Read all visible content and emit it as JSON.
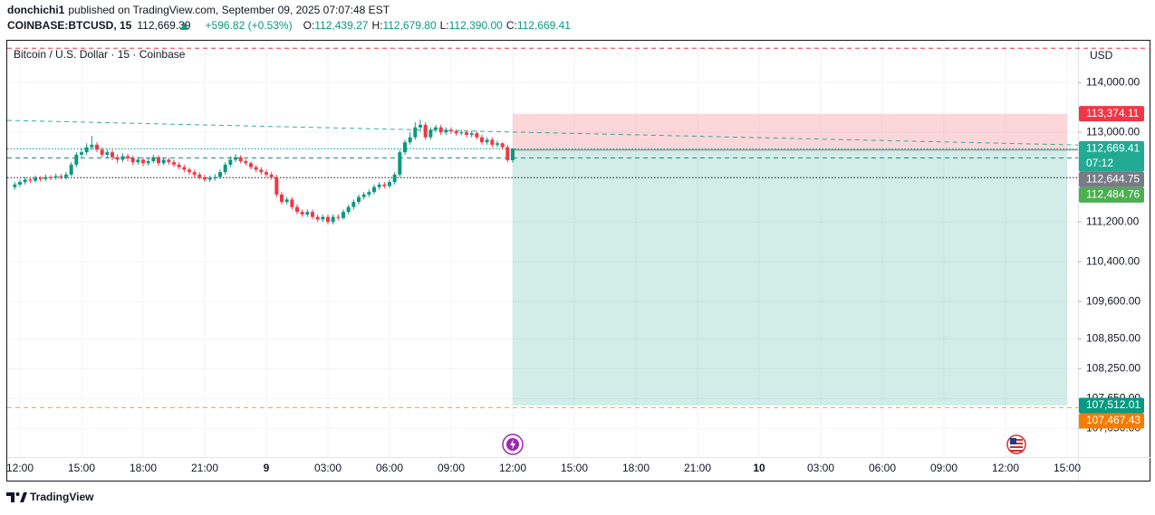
{
  "header": {
    "author": "donchichi1",
    "published": "published on TradingView.com, September 09, 2025 07:07:48 EST",
    "symbol": "COINBASE:BTCUSD, 15",
    "price": "112,669.39",
    "change": "+596.82 (+0.53%)",
    "ohlc": [
      {
        "key": "O:",
        "value": "112,439.27"
      },
      {
        "key": "H:",
        "value": "112,679.80"
      },
      {
        "key": "L:",
        "value": "112,390.00"
      },
      {
        "key": "C:",
        "value": "112,669.41"
      }
    ]
  },
  "footer": {
    "brand": "TradingView"
  },
  "chart_data": {
    "type": "candlestick",
    "title": "Bitcoin / U.S. Dollar · 15 · Coinbase",
    "currency": "USD",
    "up_color": "#089981",
    "down_color": "#f23645",
    "grid": true,
    "ylim": [
      106475,
      114840
    ],
    "yticks": [
      {
        "value": 114000,
        "label": "114,000.00"
      },
      {
        "value": 113000,
        "label": "113,000.00"
      },
      {
        "value": 111200,
        "label": "111,200.00"
      },
      {
        "value": 110400,
        "label": "110,400.00"
      },
      {
        "value": 109600,
        "label": "109,600.00"
      },
      {
        "value": 108850,
        "label": "108,850.00"
      },
      {
        "value": 108250,
        "label": "108,250.00"
      },
      {
        "value": 107650,
        "label": "107,650.00"
      },
      {
        "value": 107050,
        "label": "107,050.00"
      }
    ],
    "time_labels": [
      "12:00",
      "15:00",
      "18:00",
      "21:00",
      "9",
      "03:00",
      "06:00",
      "09:00",
      "12:00",
      "15:00",
      "18:00",
      "21:00",
      "10",
      "03:00",
      "06:00",
      "09:00",
      "12:00",
      "15:00"
    ],
    "open": [
      111900,
      111950,
      112000,
      112050,
      112030,
      112080,
      112060,
      112100,
      112090,
      112120,
      112100,
      112150,
      112350,
      112550,
      112600,
      112700,
      112750,
      112650,
      112550,
      112600,
      112500,
      112450,
      112520,
      112480,
      112400,
      112450,
      112380,
      112420,
      112500,
      112380,
      112450,
      112400,
      112350,
      112300,
      112250,
      112200,
      112150,
      112100,
      112050,
      112080,
      112100,
      112200,
      112350,
      112450,
      112500,
      112420,
      112380,
      112300,
      112250,
      112200,
      112150,
      112100,
      111750,
      111600,
      111650,
      111500,
      111400,
      111350,
      111400,
      111300,
      111250,
      111300,
      111200,
      111300,
      111280,
      111400,
      111500,
      111600,
      111700,
      111750,
      111800,
      111900,
      111950,
      111920,
      112000,
      112150,
      112600,
      112800,
      112900,
      113100,
      113150,
      112900,
      113050,
      113100,
      113000,
      113050,
      113020,
      112980,
      113000,
      112950,
      112980,
      112900,
      112800,
      112850,
      112750,
      112780,
      112700,
      112439.27
    ],
    "high": [
      112000,
      112050,
      112100,
      112100,
      112130,
      112120,
      112150,
      112140,
      112170,
      112160,
      112200,
      112400,
      112600,
      112680,
      112780,
      112930,
      112800,
      112700,
      112660,
      112650,
      112560,
      112580,
      112570,
      112530,
      112510,
      112500,
      112480,
      112550,
      112540,
      112500,
      112490,
      112450,
      112400,
      112350,
      112290,
      112250,
      112200,
      112150,
      112130,
      112160,
      112250,
      112400,
      112520,
      112560,
      112540,
      112460,
      112420,
      112340,
      112300,
      112250,
      112200,
      112150,
      111800,
      111700,
      111700,
      111550,
      111450,
      111450,
      111450,
      111350,
      111350,
      111350,
      111350,
      111350,
      111450,
      111550,
      111650,
      111750,
      111800,
      111850,
      111950,
      112000,
      112000,
      112050,
      112200,
      112650,
      112850,
      113000,
      113200,
      113250,
      113200,
      113100,
      113150,
      113150,
      113100,
      113100,
      113060,
      113050,
      113040,
      113030,
      113020,
      112950,
      112900,
      112900,
      112830,
      112800,
      112750,
      112679.8
    ],
    "low": [
      111850,
      111900,
      111950,
      111980,
      111990,
      112010,
      112020,
      112040,
      112050,
      112050,
      112050,
      112120,
      112300,
      112500,
      112550,
      112650,
      112600,
      112500,
      112480,
      112440,
      112380,
      112400,
      112420,
      112340,
      112350,
      112320,
      112330,
      112380,
      112330,
      112340,
      112350,
      112300,
      112250,
      112200,
      112150,
      112100,
      112050,
      112000,
      112000,
      112030,
      112060,
      112150,
      112300,
      112400,
      112380,
      112330,
      112250,
      112200,
      112150,
      112100,
      112050,
      111700,
      111550,
      111550,
      111450,
      111350,
      111300,
      111300,
      111250,
      111200,
      111200,
      111150,
      111150,
      111230,
      111250,
      111350,
      111450,
      111550,
      111650,
      111700,
      111750,
      111850,
      111870,
      111880,
      111950,
      112100,
      112550,
      112750,
      112850,
      113000,
      112850,
      112850,
      113000,
      112950,
      112950,
      112970,
      112930,
      112940,
      112900,
      112900,
      112850,
      112750,
      112750,
      112700,
      112700,
      112650,
      112400,
      112390
    ],
    "close": [
      111950,
      112000,
      112050,
      112030,
      112080,
      112060,
      112100,
      112090,
      112120,
      112100,
      112150,
      112350,
      112550,
      112600,
      112700,
      112750,
      112650,
      112550,
      112600,
      112500,
      112450,
      112520,
      112480,
      112400,
      112450,
      112380,
      112420,
      112500,
      112380,
      112450,
      112400,
      112350,
      112300,
      112250,
      112200,
      112150,
      112100,
      112050,
      112080,
      112100,
      112200,
      112350,
      112450,
      112500,
      112420,
      112380,
      112300,
      112250,
      112200,
      112150,
      112100,
      111750,
      111600,
      111650,
      111500,
      111400,
      111350,
      111400,
      111300,
      111250,
      111300,
      111200,
      111300,
      111280,
      111400,
      111500,
      111600,
      111700,
      111750,
      111800,
      111900,
      111950,
      111920,
      112000,
      112150,
      112600,
      112800,
      112900,
      113100,
      113150,
      112900,
      113050,
      113100,
      113000,
      113050,
      113020,
      112980,
      113000,
      112950,
      112980,
      112900,
      112800,
      112850,
      112750,
      112780,
      112700,
      112439.27,
      112669.41
    ],
    "position": {
      "stop": 113374.11,
      "entry": 112644.75,
      "target": 107512.01,
      "stop_color": "#f23645",
      "target_color": "#089981"
    },
    "trendline": {
      "values": [
        113240,
        112745
      ],
      "color": "#089981"
    },
    "levels": [
      {
        "value": 114690,
        "color": "#f23645",
        "dash": "dashed"
      },
      {
        "value": 112669.41,
        "color": "#089981",
        "dash": "dotted"
      },
      {
        "value": 112484.76,
        "color": "#089981",
        "dash": "dashed"
      },
      {
        "value": 112090,
        "color": "#131722",
        "dash": "dotted"
      },
      {
        "value": 107467.43,
        "color": "#f7a21b",
        "dash": "dashed"
      }
    ],
    "markers": [
      {
        "value": 113374.11,
        "label": "113,374.11",
        "color": "#f23645"
      },
      {
        "value": 112669.41,
        "label": "112,669.41",
        "sublabel": "07:12",
        "color": "#22ab94"
      },
      {
        "value": 112644.75,
        "label": "112,644.75",
        "color": "#787b86"
      },
      {
        "value": 112484.76,
        "label": "112,484.76",
        "color": "#4caf50"
      },
      {
        "value": 107512.01,
        "label": "107,512.01",
        "color": "#089981"
      },
      {
        "value": 107467.43,
        "label": "107,467.43",
        "color": "#f57c00"
      }
    ]
  }
}
